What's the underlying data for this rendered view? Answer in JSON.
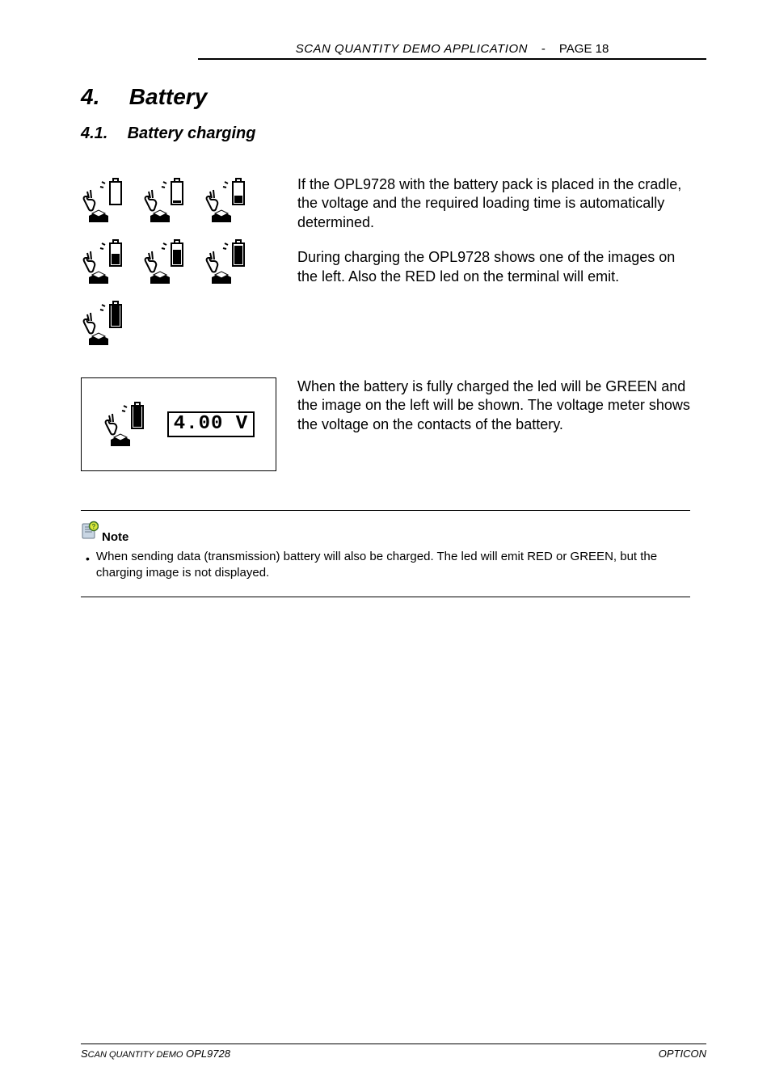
{
  "colors": {
    "text": "#000000",
    "background": "#ffffff",
    "rule": "#000000",
    "note_icon_page": "#c9d6e4",
    "note_icon_q_outer": "#3a7026",
    "note_icon_q_inner": "#d8e63a"
  },
  "header": {
    "title": "SCAN QUANTITY DEMO APPLICATION",
    "sep": "-",
    "page_label": "PAGE 18"
  },
  "chapter": {
    "number": "4.",
    "title": "Battery"
  },
  "section": {
    "number": "4.1.",
    "title": "Battery charging"
  },
  "body": {
    "para1": "If the OPL9728 with the battery pack is placed in the cradle, the voltage and the required loading time is automatically determined.",
    "para2": "During charging the OPL9728 shows one of the images on the left. Also the RED led on the terminal will emit.",
    "para3": "When the battery is fully charged the led will be GREEN and the image on the left will be shown. The voltage meter shows the voltage on the contacts of the battery."
  },
  "charge_icons": {
    "fill_levels": [
      0.0,
      0.18,
      0.38,
      0.55,
      0.72,
      0.88,
      1.0
    ]
  },
  "voltage": {
    "readout": "4.00 V",
    "icon_fill": 1.0
  },
  "note": {
    "label": "Note",
    "text": "When sending data (transmission) battery will also be charged. The led will emit RED or GREEN, but the charging image is not displayed."
  },
  "footer": {
    "left_small_caps_prefix": "S",
    "left_rest": "CAN QUANTITY DEMO",
    "left_model": " OPL9728",
    "right": "OPTICON"
  },
  "typography": {
    "body_fontsize_pt": 13,
    "h1_fontsize_pt": 21,
    "h2_fontsize_pt": 15,
    "note_fontsize_pt": 11
  }
}
